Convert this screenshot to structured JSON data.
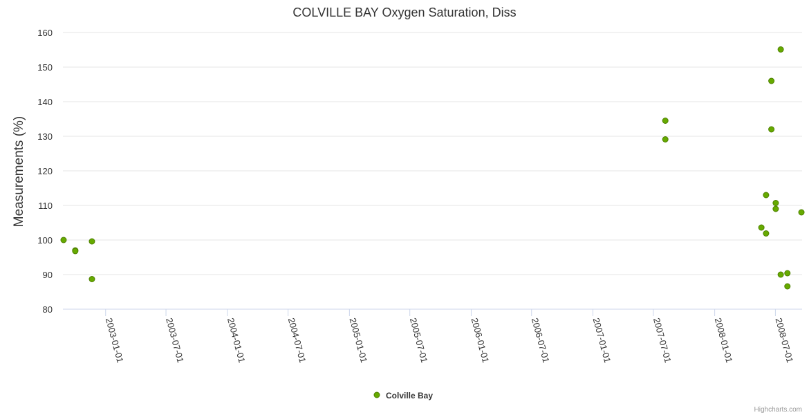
{
  "chart_data": {
    "type": "scatter",
    "title": "COLVILLE BAY Oxygen Saturation, Diss",
    "xlabel": "",
    "ylabel": "Measurements (%)",
    "ylim": [
      80,
      160
    ],
    "yticks": [
      80,
      90,
      100,
      110,
      120,
      130,
      140,
      150,
      160
    ],
    "xticks": [
      "2003-01-01",
      "2003-07-01",
      "2004-01-01",
      "2004-07-01",
      "2005-01-01",
      "2005-07-01",
      "2006-01-01",
      "2006-07-01",
      "2007-01-01",
      "2007-07-01",
      "2008-01-01",
      "2008-07-01"
    ],
    "xlim": [
      "2002-08-26",
      "2008-09-19"
    ],
    "grid": "horizontal",
    "legend_position": "bottom-center",
    "series": [
      {
        "name": "Colville Bay",
        "color": "#66aa00",
        "points": [
          {
            "x": "2002-08-28",
            "y": 100
          },
          {
            "x": "2002-10-02",
            "y": 97
          },
          {
            "x": "2002-10-02",
            "y": 96.8
          },
          {
            "x": "2002-11-21",
            "y": 99.6
          },
          {
            "x": "2002-11-21",
            "y": 88.7
          },
          {
            "x": "2007-08-06",
            "y": 134.5
          },
          {
            "x": "2007-08-06",
            "y": 129.1
          },
          {
            "x": "2008-05-20",
            "y": 103.6
          },
          {
            "x": "2008-06-03",
            "y": 113
          },
          {
            "x": "2008-06-03",
            "y": 101.9
          },
          {
            "x": "2008-06-19",
            "y": 146
          },
          {
            "x": "2008-06-19",
            "y": 132
          },
          {
            "x": "2008-07-02",
            "y": 110.7
          },
          {
            "x": "2008-07-02",
            "y": 109
          },
          {
            "x": "2008-07-17",
            "y": 155.1
          },
          {
            "x": "2008-07-17",
            "y": 90
          },
          {
            "x": "2008-08-06",
            "y": 90.4
          },
          {
            "x": "2008-08-06",
            "y": 86.6
          },
          {
            "x": "2008-09-17",
            "y": 108
          }
        ]
      }
    ]
  },
  "legend": {
    "label": "Colville Bay"
  },
  "credits": "Highcharts.com"
}
